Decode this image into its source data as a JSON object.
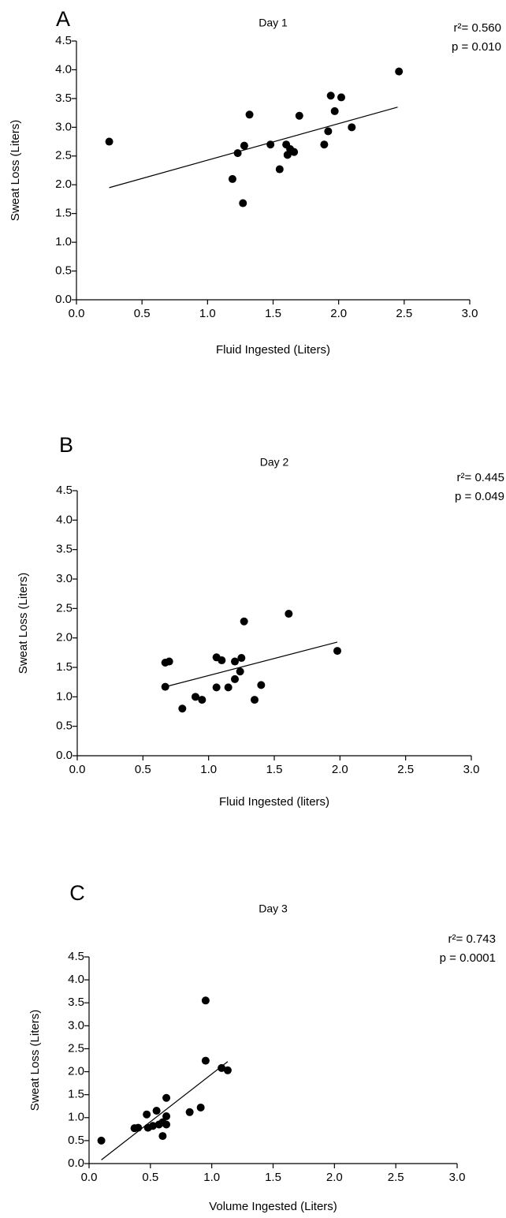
{
  "chart_data": [
    {
      "type": "scatter",
      "panel": "A",
      "title": "Day 1",
      "annotations": [
        "r²= 0.560",
        "p = 0.010"
      ],
      "x_label": "Fluid Ingested (Liters)",
      "y_label": "Sweat Loss (Liters)",
      "xlim": [
        0,
        3
      ],
      "ylim": [
        0,
        4.5
      ],
      "xticks": [
        {
          "value": 0,
          "label": "0.0"
        },
        0.5,
        {
          "value": 1,
          "label": "1.0"
        },
        1.5,
        {
          "value": 2,
          "label": "2.0"
        },
        2.5,
        {
          "value": 3,
          "label": "3.0"
        }
      ],
      "yticks": [
        {
          "value": 0,
          "label": "0.0"
        },
        0.5,
        {
          "value": 1,
          "label": "1.0"
        },
        1.5,
        {
          "value": 2,
          "label": "2.0"
        },
        2.5,
        {
          "value": 3,
          "label": "3.0"
        },
        3.5,
        {
          "value": 4,
          "label": "4.0"
        },
        4.5
      ],
      "color": "#000000",
      "x": [
        0.25,
        1.19,
        1.23,
        1.27,
        1.28,
        1.32,
        1.48,
        1.55,
        1.6,
        1.61,
        1.63,
        1.66,
        1.7,
        1.89,
        1.92,
        1.94,
        1.97,
        2.02,
        2.1,
        2.46
      ],
      "values": [
        2.75,
        2.1,
        2.55,
        1.68,
        2.68,
        3.22,
        2.7,
        2.27,
        2.7,
        2.52,
        2.62,
        2.57,
        3.2,
        2.7,
        2.93,
        3.55,
        3.28,
        3.52,
        3.0,
        3.97
      ],
      "trend": {
        "x": [
          0.25,
          2.45
        ],
        "y": [
          1.95,
          3.35
        ]
      }
    },
    {
      "type": "scatter",
      "panel": "B",
      "title": "Day 2",
      "annotations": [
        "r²= 0.445",
        "p = 0.049"
      ],
      "x_label": "Fluid Ingested (liters)",
      "y_label": "Sweat Loss (Liters)",
      "xlim": [
        0,
        3
      ],
      "ylim": [
        0,
        4.5
      ],
      "xticks": [
        {
          "value": 0,
          "label": "0.0"
        },
        0.5,
        {
          "value": 1,
          "label": "1.0"
        },
        1.5,
        {
          "value": 2,
          "label": "2.0"
        },
        2.5,
        {
          "value": 3,
          "label": "3.0"
        }
      ],
      "yticks": [
        {
          "value": 0,
          "label": "0.0"
        },
        0.5,
        {
          "value": 1,
          "label": "1.0"
        },
        1.5,
        {
          "value": 2,
          "label": "2.0"
        },
        2.5,
        {
          "value": 3,
          "label": "3.0"
        },
        3.5,
        {
          "value": 4,
          "label": "4.0"
        },
        4.5
      ],
      "color": "#000000",
      "x": [
        0.67,
        0.67,
        0.7,
        0.8,
        0.9,
        0.95,
        1.06,
        1.06,
        1.1,
        1.15,
        1.2,
        1.2,
        1.24,
        1.25,
        1.27,
        1.35,
        1.4,
        1.61,
        1.98
      ],
      "values": [
        1.17,
        1.58,
        1.6,
        0.8,
        1.0,
        0.95,
        1.16,
        1.67,
        1.62,
        1.16,
        1.6,
        1.3,
        1.43,
        1.66,
        2.28,
        0.95,
        1.2,
        2.41,
        1.78
      ],
      "trend": {
        "x": [
          0.67,
          1.98
        ],
        "y": [
          1.17,
          1.93
        ]
      }
    },
    {
      "type": "scatter",
      "panel": "C",
      "title": "Day 3",
      "annotations": [
        "r²= 0.743",
        "p = 0.0001"
      ],
      "x_label": "Volume Ingested (Liters)",
      "y_label": "Sweat Loss (Liters)",
      "xlim": [
        0,
        3
      ],
      "ylim": [
        0,
        4.5
      ],
      "xticks": [
        {
          "value": 0,
          "label": "0.0"
        },
        0.5,
        {
          "value": 1,
          "label": "1.0"
        },
        1.5,
        {
          "value": 2,
          "label": "2.0"
        },
        2.5,
        {
          "value": 3,
          "label": "3.0"
        }
      ],
      "yticks": [
        {
          "value": 0,
          "label": "0.0"
        },
        0.5,
        {
          "value": 1,
          "label": "1.0"
        },
        1.5,
        {
          "value": 2,
          "label": "2.0"
        },
        2.5,
        {
          "value": 3,
          "label": "3.0"
        },
        3.5,
        {
          "value": 4,
          "label": "4.0"
        },
        4.5
      ],
      "color": "#000000",
      "x": [
        0.1,
        0.37,
        0.4,
        0.47,
        0.48,
        0.52,
        0.55,
        0.57,
        0.6,
        0.6,
        0.63,
        0.63,
        0.63,
        0.82,
        0.91,
        0.95,
        0.95,
        1.08,
        1.13
      ],
      "values": [
        0.5,
        0.77,
        0.78,
        1.07,
        0.78,
        0.82,
        1.15,
        0.85,
        0.6,
        0.9,
        1.43,
        1.03,
        0.85,
        1.12,
        1.22,
        2.24,
        3.55,
        2.08,
        2.03
      ],
      "trend": {
        "x": [
          0.1,
          1.13
        ],
        "y": [
          0.08,
          2.22
        ]
      }
    }
  ]
}
